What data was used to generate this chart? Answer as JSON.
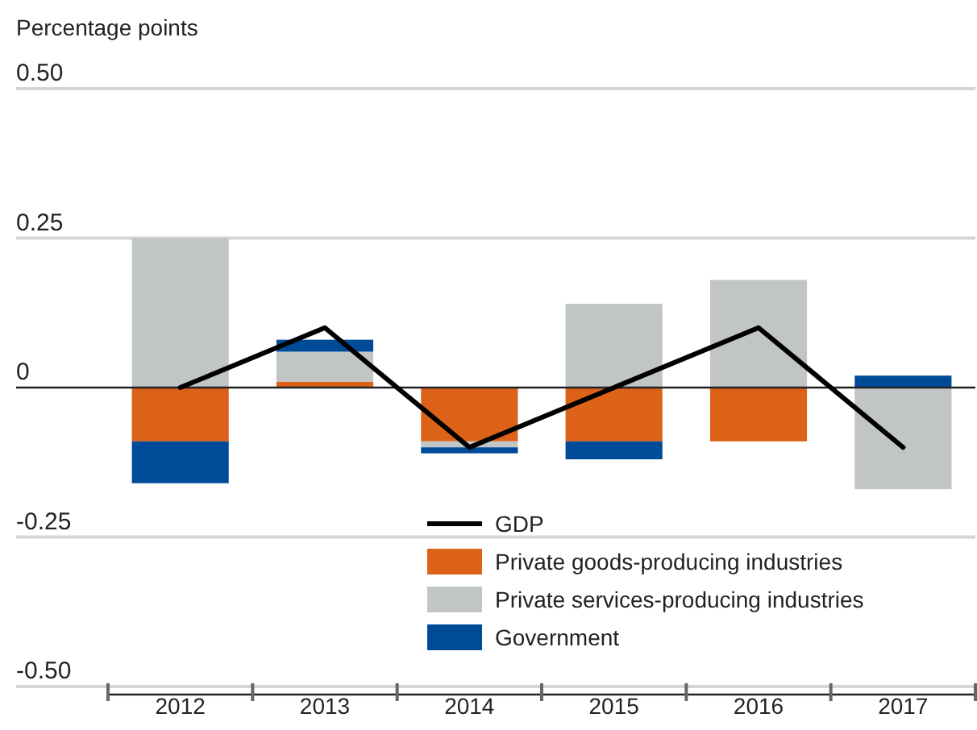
{
  "chart_data": {
    "type": "bar",
    "stacked": true,
    "ylabel": "Percentage points",
    "categories": [
      "2012",
      "2013",
      "2014",
      "2015",
      "2016",
      "2017"
    ],
    "series": [
      {
        "name": "GDP",
        "type": "line",
        "color": "#000000",
        "values": [
          0,
          0.1,
          -0.1,
          0,
          0.1,
          -0.1
        ]
      },
      {
        "name": "Private goods-producing industries",
        "color": "#dc6119",
        "values": [
          -0.09,
          0.01,
          -0.09,
          -0.09,
          -0.09,
          0
        ]
      },
      {
        "name": "Private services-producing industries",
        "color": "#c2c5c6",
        "values": [
          0.25,
          0.05,
          -0.01,
          0.14,
          0.18,
          -0.17
        ]
      },
      {
        "name": "Government",
        "color": "#004b98",
        "values": [
          -0.07,
          0.02,
          -0.01,
          -0.03,
          0,
          0.02
        ]
      }
    ],
    "ylim": [
      -0.5,
      0.5
    ],
    "yticks": [
      {
        "value": 0.5,
        "label": "0.50"
      },
      {
        "value": 0.25,
        "label": "0.25"
      },
      0,
      {
        "value": -0.25,
        "label": "-0.25"
      },
      {
        "value": -0.5,
        "label": "-0.50"
      }
    ],
    "grid": "y",
    "legend": "bottom"
  }
}
